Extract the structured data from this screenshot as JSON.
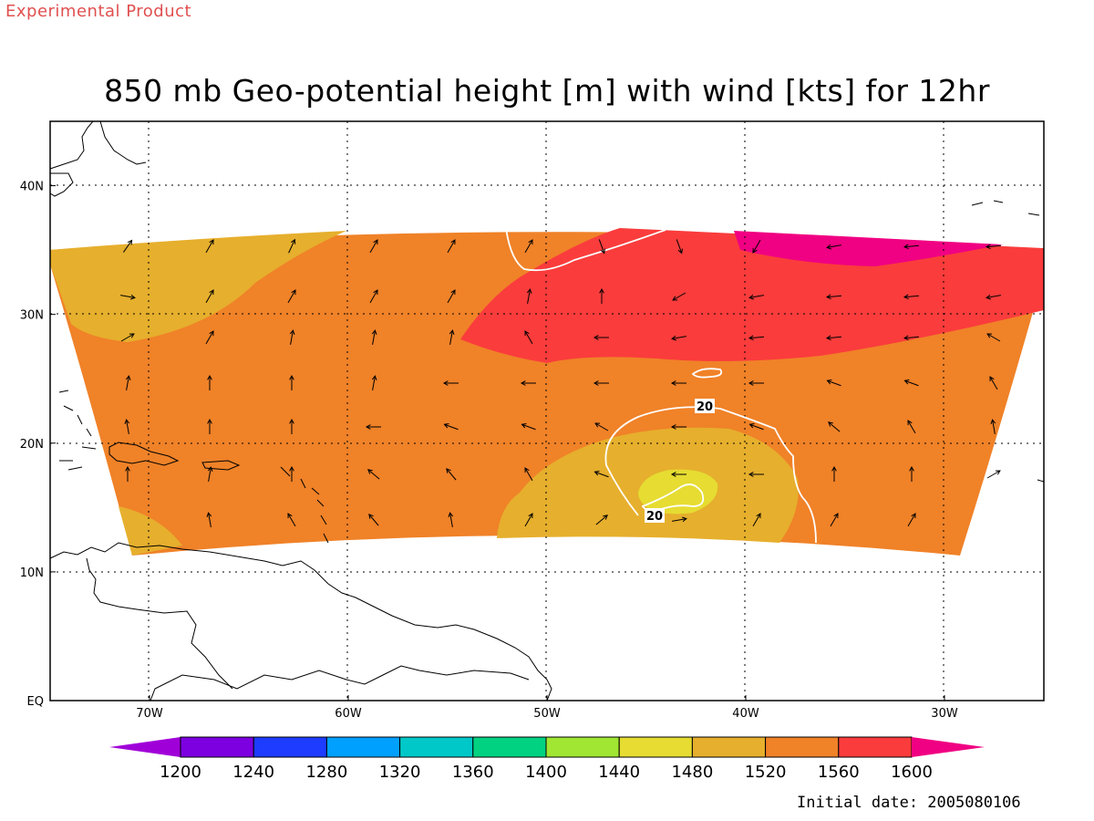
{
  "header": {
    "product_label": "Experimental Product",
    "title": "850 mb Geo-potential height [m] with wind [kts] for 12hr"
  },
  "footer": {
    "initial_date": "Initial date: 2005080106"
  },
  "map": {
    "lon_range": [
      -75,
      -25
    ],
    "lat_range": [
      0,
      45
    ],
    "lon_ticks": [
      {
        "value": -70,
        "label": "70W"
      },
      {
        "value": -60,
        "label": "60W"
      },
      {
        "value": -50,
        "label": "50W"
      },
      {
        "value": -40,
        "label": "40W"
      },
      {
        "value": -30,
        "label": "30W"
      }
    ],
    "lat_ticks": [
      {
        "value": 0,
        "label": "EQ"
      },
      {
        "value": 10,
        "label": "10N"
      },
      {
        "value": 20,
        "label": "20N"
      },
      {
        "value": 30,
        "label": "30N"
      },
      {
        "value": 40,
        "label": "40N"
      }
    ],
    "gridlines": true,
    "wind_contour_label": "20"
  },
  "colorbar": {
    "labels": [
      "1200",
      "1240",
      "1280",
      "1320",
      "1360",
      "1400",
      "1440",
      "1480",
      "1520",
      "1560",
      "1600"
    ],
    "colors": [
      "#a000d8",
      "#7c00e0",
      "#1e3cff",
      "#00a0ff",
      "#00c8c8",
      "#00d282",
      "#a0e632",
      "#e6dc32",
      "#e6af2d",
      "#f08228",
      "#fa3c3c",
      "#f00082"
    ]
  },
  "shading_colors": {
    "c1480": "#e6dc32",
    "c1520": "#e6af2d",
    "c1560": "#f08228",
    "c1600": "#fa3c3c",
    "c1640": "#f00082"
  }
}
